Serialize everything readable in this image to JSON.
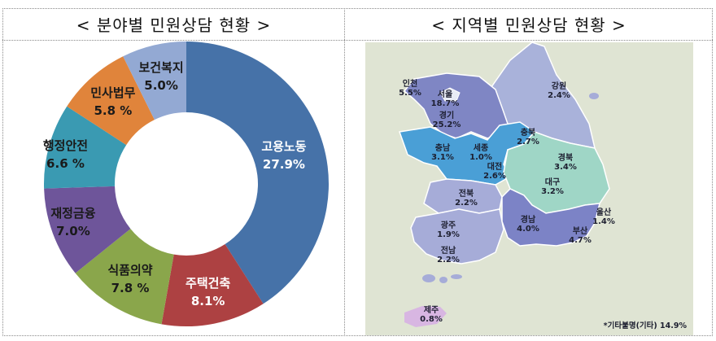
{
  "left_panel": {
    "title": "< 분야별 민원상담 현황 >"
  },
  "right_panel": {
    "title": "< 지역별 민원상담 현황 >",
    "footnote": "*기타불명(기타) 14.9%"
  },
  "chart_data": [
    {
      "type": "pie",
      "variant": "donut",
      "title": "< 분야별 민원상담 현황 >",
      "categories": [
        "고용노동",
        "주택건축",
        "식품의약",
        "재정금융",
        "행정안전",
        "민사법무",
        "보건복지"
      ],
      "values": [
        27.9,
        8.1,
        7.8,
        7.0,
        6.6,
        5.8,
        5.0
      ],
      "value_labels": [
        "27.9%",
        "8.1%",
        "7.8 %",
        "7.0%",
        "6.6 %",
        "5.8 %",
        "5.0%"
      ],
      "colors": [
        "#4672a8",
        "#ad4142",
        "#8aa64b",
        "#6e559a",
        "#3a9ab2",
        "#e0843b",
        "#93a9d3"
      ],
      "label_colors": [
        "#ffffff",
        "#ffffff",
        "#1a1a1a",
        "#1a1a1a",
        "#1a1a1a",
        "#1a1a1a",
        "#1a1a1a"
      ],
      "start_angle": "12 o'clock",
      "direction": "clockwise",
      "legend": "none (labels on slices)"
    },
    {
      "type": "choropleth-map",
      "title": "< 지역별 민원상담 현황 >",
      "regions": [
        {
          "name": "인천",
          "value": 5.5,
          "label": "5.5%"
        },
        {
          "name": "서울",
          "value": 18.7,
          "label": "18.7%"
        },
        {
          "name": "경기",
          "value": 25.2,
          "label": "25.2%"
        },
        {
          "name": "강원",
          "value": 2.4,
          "label": "2.4%"
        },
        {
          "name": "충북",
          "value": 2.7,
          "label": "2.7%"
        },
        {
          "name": "충남",
          "value": 3.1,
          "label": "3.1%"
        },
        {
          "name": "세종",
          "value": 1.0,
          "label": "1.0%"
        },
        {
          "name": "대전",
          "value": 2.6,
          "label": "2.6%"
        },
        {
          "name": "경북",
          "value": 3.4,
          "label": "3.4%"
        },
        {
          "name": "대구",
          "value": 3.2,
          "label": "3.2%"
        },
        {
          "name": "전북",
          "value": 2.2,
          "label": "2.2%"
        },
        {
          "name": "광주",
          "value": 1.9,
          "label": "1.9%"
        },
        {
          "name": "전남",
          "value": 2.2,
          "label": "2.2%"
        },
        {
          "name": "경남",
          "value": 4.0,
          "label": "4.0%"
        },
        {
          "name": "울산",
          "value": 1.4,
          "label": "1.4%"
        },
        {
          "name": "부산",
          "value": 4.7,
          "label": "4.7%"
        },
        {
          "name": "제주",
          "value": 0.8,
          "label": "0.8%"
        }
      ],
      "annotation": "*기타불명(기타) 14.9%"
    }
  ],
  "map_colors": {
    "background": "#dfe4d3",
    "capital": "#7f86c4",
    "gangwon": "#a9b2da",
    "chungcheong": "#4a9fd6",
    "gyeongbuk": "#9fd6c6",
    "jeolla": "#a6acd8",
    "gyeongnam": "#7c83c6",
    "jeju": "#d8b6e2",
    "border": "#ffffff"
  }
}
